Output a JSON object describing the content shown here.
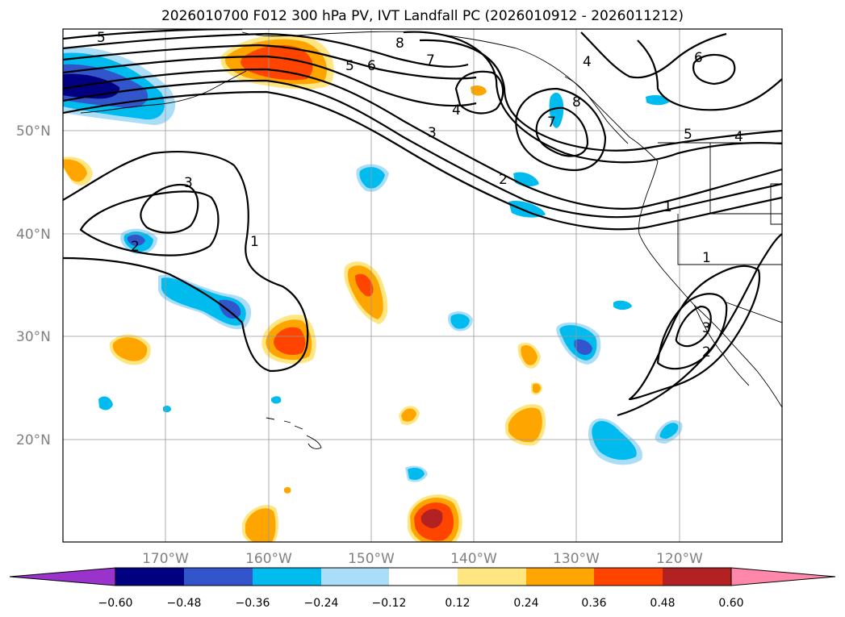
{
  "title": "2026010700 F012 300 hPa PV, IVT Landfall PC (2026010912 - 2026011212)",
  "lat_labels": [
    "50°N",
    "40°N",
    "30°N",
    "20°N"
  ],
  "lon_labels": [
    "170°W",
    "160°W",
    "150°W",
    "140°W",
    "130°W",
    "120°W"
  ],
  "colorbar": {
    "ticks": [
      "−0.60",
      "−0.48",
      "−0.36",
      "−0.24",
      "−0.12",
      "0.12",
      "0.24",
      "0.36",
      "0.48",
      "0.60"
    ],
    "colors": [
      "#9933cc",
      "#000080",
      "#3355cc",
      "#00bbee",
      "#aaddf8",
      "#ffffff",
      "#ffe680",
      "#ffa500",
      "#ff4400",
      "#b22222",
      "#ff88aa"
    ]
  },
  "fill_colors": {
    "neg_strong": "#000080",
    "neg_mid": "#3355cc",
    "neg": "#00bbee",
    "neg_light": "#aaddf8",
    "pos_light": "#ffe680",
    "pos": "#ffa500",
    "pos_mid": "#ff4400",
    "pos_strong": "#b22222"
  },
  "contour_labels": [
    "5",
    "8",
    "7",
    "6",
    "5",
    "4",
    "7",
    "8",
    "4",
    "6",
    "3",
    "5",
    "4",
    "2",
    "1",
    "3",
    "2",
    "1",
    "1",
    "2",
    "3"
  ]
}
